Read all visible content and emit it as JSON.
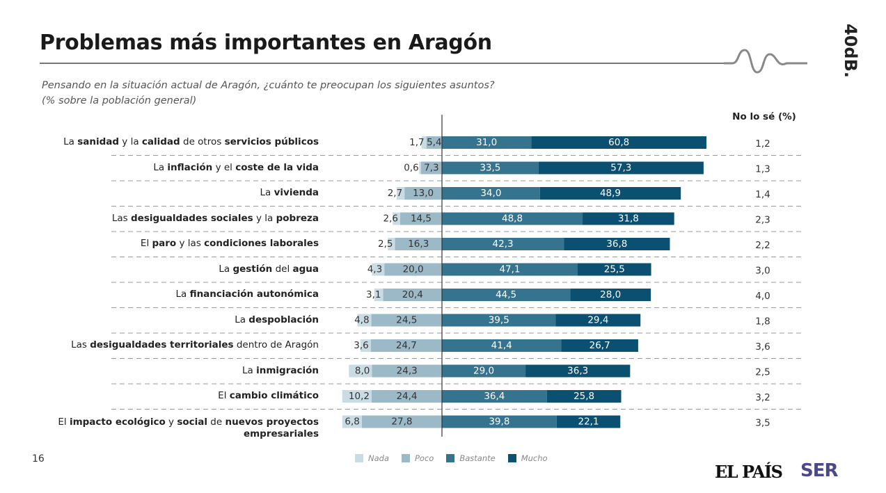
{
  "header": {
    "title": "Problemas más importantes en Aragón",
    "subtitle_line1": "Pensando en la situación actual de Aragón, ¿cuánto te preocupan los siguientes asuntos?",
    "subtitle_line2": "(% sobre la población general)",
    "brand": "40dB.",
    "nolose_header": "No lo sé (%)"
  },
  "footer": {
    "page_number": "16",
    "logo1": "EL PAÍS",
    "logo2": "SER"
  },
  "chart_data": {
    "type": "bar",
    "orientation": "horizontal",
    "stacking": "diverging",
    "legend_position": "bottom",
    "grid": false,
    "series": [
      {
        "name": "Nada",
        "color": "#c9dbe3",
        "side": "negative",
        "values": [
          1.7,
          0.6,
          2.7,
          2.6,
          2.5,
          4.3,
          3.1,
          4.8,
          3.6,
          8.0,
          10.2,
          6.8
        ],
        "labels": [
          "1,7",
          "0,6",
          "2,7",
          "2,6",
          "2,5",
          "4,3",
          "3,1",
          "4,8",
          "3,6",
          "8,0",
          "10,2",
          "6,8"
        ]
      },
      {
        "name": "Poco",
        "color": "#9bb9c7",
        "side": "negative",
        "values": [
          5.4,
          7.3,
          13.0,
          14.5,
          16.3,
          20.0,
          20.4,
          24.5,
          24.7,
          24.3,
          24.4,
          27.8
        ],
        "labels": [
          "5,4",
          "7,3",
          "13,0",
          "14,5",
          "16,3",
          "20,0",
          "20,4",
          "24,5",
          "24,7",
          "24,3",
          "24,4",
          "27,8"
        ]
      },
      {
        "name": "Bastante",
        "color": "#35738f",
        "side": "positive",
        "values": [
          31.0,
          33.5,
          34.0,
          48.8,
          42.3,
          47.1,
          44.5,
          39.5,
          41.4,
          29.0,
          36.4,
          39.8
        ],
        "labels": [
          "31,0",
          "33,5",
          "34,0",
          "48,8",
          "42,3",
          "47,1",
          "44,5",
          "39,5",
          "41,4",
          "29,0",
          "36,4",
          "39,8"
        ]
      },
      {
        "name": "Mucho",
        "color": "#0b4f71",
        "side": "positive",
        "values": [
          60.8,
          57.3,
          48.9,
          31.8,
          36.8,
          25.5,
          28.0,
          29.4,
          26.7,
          36.3,
          25.8,
          22.1
        ],
        "labels": [
          "60,8",
          "57,3",
          "48,9",
          "31,8",
          "36,8",
          "25,5",
          "28,0",
          "29,4",
          "26,7",
          "36,3",
          "25,8",
          "22,1"
        ]
      }
    ],
    "no_lo_se": {
      "values": [
        1.2,
        1.3,
        1.4,
        2.3,
        2.2,
        3.0,
        4.0,
        1.8,
        3.6,
        2.5,
        3.2,
        3.5
      ],
      "labels": [
        "1,2",
        "1,3",
        "1,4",
        "2,3",
        "2,2",
        "3,0",
        "4,0",
        "1,8",
        "3,6",
        "2,5",
        "3,2",
        "3,5"
      ]
    },
    "categories": [
      [
        {
          "t": "La "
        },
        {
          "t": "sanidad",
          "b": true
        },
        {
          "t": " y la "
        },
        {
          "t": "calidad",
          "b": true
        },
        {
          "t": " de otros "
        },
        {
          "t": "servicios públicos",
          "b": true
        }
      ],
      [
        {
          "t": "La "
        },
        {
          "t": "inflación",
          "b": true
        },
        {
          "t": " y el "
        },
        {
          "t": "coste de la vida",
          "b": true
        }
      ],
      [
        {
          "t": "La "
        },
        {
          "t": "vivienda",
          "b": true
        }
      ],
      [
        {
          "t": "Las "
        },
        {
          "t": "desigualdades sociales",
          "b": true
        },
        {
          "t": " y la "
        },
        {
          "t": "pobreza",
          "b": true
        }
      ],
      [
        {
          "t": "El "
        },
        {
          "t": "paro",
          "b": true
        },
        {
          "t": " y las "
        },
        {
          "t": "condiciones laborales",
          "b": true
        }
      ],
      [
        {
          "t": "La "
        },
        {
          "t": "gestión",
          "b": true
        },
        {
          "t": " del "
        },
        {
          "t": "agua",
          "b": true
        }
      ],
      [
        {
          "t": "La "
        },
        {
          "t": "financiación autonómica",
          "b": true
        }
      ],
      [
        {
          "t": "La "
        },
        {
          "t": "despoblación",
          "b": true
        }
      ],
      [
        {
          "t": "Las "
        },
        {
          "t": "desigualdades territoriales",
          "b": true
        },
        {
          "t": " dentro de Aragón"
        }
      ],
      [
        {
          "t": "La "
        },
        {
          "t": "inmigración",
          "b": true
        }
      ],
      [
        {
          "t": "El "
        },
        {
          "t": "cambio climático",
          "b": true
        }
      ],
      [
        {
          "t": "El "
        },
        {
          "t": "impacto ecológico",
          "b": true
        },
        {
          "t": " y "
        },
        {
          "t": "social",
          "b": true
        },
        {
          "t": " de "
        },
        {
          "t": "nuevos proyectos",
          "b": true
        },
        {
          "t": "\n"
        },
        {
          "t": "empresariales",
          "b": true
        }
      ]
    ]
  }
}
